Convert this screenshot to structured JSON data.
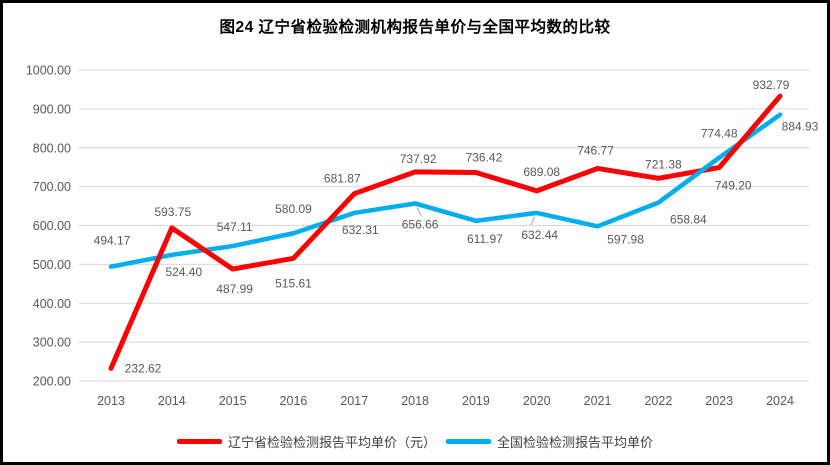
{
  "chart_data": {
    "type": "line",
    "title": "图24 辽宁省检验检测机构报告单价与全国平均数的比较",
    "categories": [
      "2013",
      "2014",
      "2015",
      "2016",
      "2017",
      "2018",
      "2019",
      "2020",
      "2021",
      "2022",
      "2023",
      "2024"
    ],
    "series": [
      {
        "name": "辽宁省检验检测报告平均单价（元）",
        "color": "#FF0000",
        "values": [
          232.62,
          593.75,
          487.99,
          515.61,
          681.87,
          737.92,
          736.42,
          689.08,
          746.77,
          721.38,
          749.2,
          932.79
        ]
      },
      {
        "name": "全国检验检测报告平均单价",
        "color": "#00AEEF",
        "values": [
          494.17,
          524.4,
          547.11,
          580.09,
          632.31,
          656.66,
          611.97,
          632.44,
          597.98,
          658.84,
          774.48,
          884.93
        ]
      }
    ],
    "xlabel": "",
    "ylabel": "",
    "ylim": [
      200,
      1000
    ],
    "y_tick_step": 100,
    "y_ticks": [
      "200.00",
      "300.00",
      "400.00",
      "500.00",
      "600.00",
      "700.00",
      "800.00",
      "900.00",
      "1000.00"
    ],
    "grid": true,
    "data_labels": true,
    "legend_position": "bottom",
    "colors": {
      "grid": "#D9D9D9",
      "tick_text": "#595959",
      "data_label_text": "#595959",
      "title_text": "#000000",
      "legend_text": "#404040",
      "leader_line": "#A6A6A6",
      "frame_border": "#000000"
    }
  }
}
